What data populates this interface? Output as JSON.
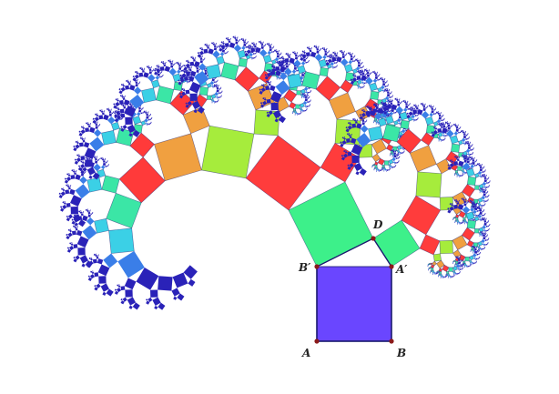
{
  "diagram": {
    "kind": "pythagoras-tree",
    "depth": 12,
    "colors": {
      "root": "#6a46ff",
      "level_1": "#3df08a",
      "level_2": "#ff3c3c",
      "level_3": "#a6ec3c",
      "level_4": "#f0a040",
      "level_5": "#ff3a3a",
      "level_6": "#3be6a6",
      "level_7": "#3bd0e6",
      "level_8": "#3a7ee8",
      "deep": "#2a22b8",
      "outline": "#1a1a6e"
    },
    "points": [
      {
        "id": "A",
        "label": "A"
      },
      {
        "id": "B",
        "label": "B"
      },
      {
        "id": "A_prime",
        "label": "A′"
      },
      {
        "id": "B_prime",
        "label": "B′"
      },
      {
        "id": "D",
        "label": "D"
      }
    ],
    "point_color": "#8b1a1a"
  }
}
